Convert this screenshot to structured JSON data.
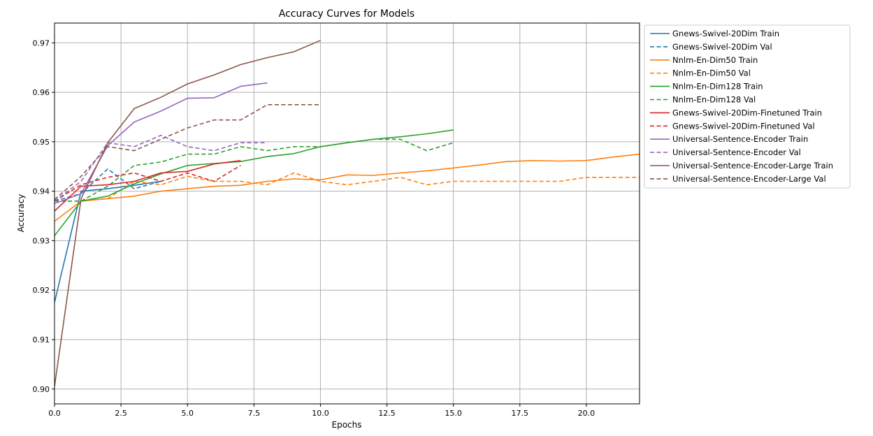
{
  "chart_data": {
    "type": "line",
    "title": "Accuracy Curves for Models",
    "xlabel": "Epochs",
    "ylabel": "Accuracy",
    "xlim": [
      0,
      22
    ],
    "ylim": [
      0.897,
      0.974
    ],
    "xticks": [
      0,
      2.5,
      5,
      7.5,
      10,
      12.5,
      15,
      17.5,
      20
    ],
    "xtick_labels": [
      "0.0",
      "2.5",
      "5.0",
      "7.5",
      "10.0",
      "12.5",
      "15.0",
      "17.5",
      "20.0"
    ],
    "yticks": [
      0.9,
      0.91,
      0.92,
      0.93,
      0.94,
      0.95,
      0.96,
      0.97
    ],
    "ytick_labels": [
      "0.90",
      "0.91",
      "0.92",
      "0.93",
      "0.94",
      "0.95",
      "0.96",
      "0.97"
    ],
    "grid": true,
    "legend_position": "outside-right",
    "series": [
      {
        "name": "Gnews-Swivel-20Dim Train",
        "color": "#1f77b4",
        "dashed": false,
        "x": [
          0,
          1,
          2,
          3,
          4
        ],
        "y": [
          0.9175,
          0.94,
          0.9405,
          0.9412,
          0.942
        ]
      },
      {
        "name": "Gnews-Swivel-20Dim Val",
        "color": "#1f77b4",
        "dashed": true,
        "x": [
          0,
          1,
          2,
          3,
          4
        ],
        "y": [
          0.938,
          0.9395,
          0.9445,
          0.9405,
          0.942
        ]
      },
      {
        "name": "Nnlm-En-Dim50 Train",
        "color": "#ff7f0e",
        "dashed": false,
        "x": [
          0,
          1,
          2,
          3,
          4,
          5,
          6,
          7,
          8,
          9,
          10,
          11,
          12,
          13,
          14,
          15,
          16,
          17,
          18,
          19,
          20,
          21,
          22
        ],
        "y": [
          0.9339,
          0.938,
          0.9385,
          0.939,
          0.94,
          0.9405,
          0.941,
          0.9412,
          0.942,
          0.9425,
          0.9423,
          0.9433,
          0.9432,
          0.9437,
          0.9441,
          0.9447,
          0.9453,
          0.946,
          0.9462,
          0.9461,
          0.9462,
          0.9469,
          0.9475
        ]
      },
      {
        "name": "Nnlm-En-Dim50 Val",
        "color": "#ff7f0e",
        "dashed": true,
        "x": [
          0,
          1,
          2,
          3,
          4,
          5,
          6,
          7,
          8,
          9,
          10,
          11,
          12,
          13,
          14,
          15,
          16,
          17,
          18,
          19,
          20,
          21,
          22
        ],
        "y": [
          0.938,
          0.938,
          0.9385,
          0.942,
          0.9413,
          0.943,
          0.942,
          0.942,
          0.9413,
          0.9437,
          0.942,
          0.9413,
          0.942,
          0.9428,
          0.9413,
          0.942,
          0.942,
          0.942,
          0.942,
          0.942,
          0.9428,
          0.9428,
          0.9428
        ]
      },
      {
        "name": "Nnlm-En-Dim128 Train",
        "color": "#2ca02c",
        "dashed": false,
        "x": [
          0,
          1,
          2,
          3,
          4,
          5,
          6,
          7,
          8,
          9,
          10,
          11,
          12,
          13,
          14,
          15
        ],
        "y": [
          0.931,
          0.938,
          0.939,
          0.9415,
          0.9435,
          0.9452,
          0.9456,
          0.946,
          0.947,
          0.9476,
          0.949,
          0.9498,
          0.9505,
          0.951,
          0.9516,
          0.9524
        ]
      },
      {
        "name": "Nnlm-En-Dim128 Val",
        "color": "#2ca02c",
        "dashed": true,
        "x": [
          0,
          1,
          2,
          3,
          4,
          5,
          6,
          7,
          8,
          9,
          10,
          11,
          12,
          13,
          14,
          15
        ],
        "y": [
          0.938,
          0.938,
          0.941,
          0.9452,
          0.9459,
          0.9475,
          0.9475,
          0.949,
          0.9482,
          0.949,
          0.949,
          0.9498,
          0.9505,
          0.9505,
          0.9482,
          0.9498
        ]
      },
      {
        "name": "Gnews-Swivel-20Dim-Finetuned Train",
        "color": "#d62728",
        "dashed": false,
        "x": [
          0,
          1,
          2,
          3,
          4,
          5,
          6,
          7
        ],
        "y": [
          0.936,
          0.941,
          0.9413,
          0.942,
          0.9437,
          0.944,
          0.9455,
          0.9462
        ]
      },
      {
        "name": "Gnews-Swivel-20Dim-Finetuned Val",
        "color": "#d62728",
        "dashed": true,
        "x": [
          0,
          1,
          2,
          3,
          4,
          5,
          6,
          7
        ],
        "y": [
          0.938,
          0.9413,
          0.9428,
          0.9437,
          0.942,
          0.9437,
          0.942,
          0.9452
        ]
      },
      {
        "name": "Universal-Sentence-Encoder Train",
        "color": "#9467bd",
        "dashed": false,
        "x": [
          0,
          1,
          2,
          3,
          4,
          5,
          6,
          7,
          8
        ],
        "y": [
          0.9375,
          0.9395,
          0.9492,
          0.954,
          0.9562,
          0.9588,
          0.9589,
          0.9612,
          0.9619
        ]
      },
      {
        "name": "Universal-Sentence-Encoder Val",
        "color": "#9467bd",
        "dashed": true,
        "x": [
          0,
          1,
          2,
          3,
          4,
          5,
          6,
          7,
          8
        ],
        "y": [
          0.938,
          0.942,
          0.9498,
          0.949,
          0.9513,
          0.949,
          0.9482,
          0.9498,
          0.9498
        ]
      },
      {
        "name": "Universal-Sentence-Encoder-Large Train",
        "color": "#8c564b",
        "dashed": false,
        "x": [
          0,
          1,
          2,
          3,
          4,
          5,
          6,
          7,
          8,
          9,
          10
        ],
        "y": [
          0.9005,
          0.9385,
          0.9498,
          0.9567,
          0.959,
          0.9617,
          0.9635,
          0.9656,
          0.967,
          0.9682,
          0.9705
        ]
      },
      {
        "name": "Universal-Sentence-Encoder-Large Val",
        "color": "#8c564b",
        "dashed": true,
        "x": [
          0,
          1,
          2,
          3,
          4,
          5,
          6,
          7,
          8,
          9,
          10
        ],
        "y": [
          0.9383,
          0.943,
          0.949,
          0.9482,
          0.9505,
          0.9528,
          0.9544,
          0.9544,
          0.9575,
          0.9575,
          0.9575
        ]
      }
    ]
  }
}
